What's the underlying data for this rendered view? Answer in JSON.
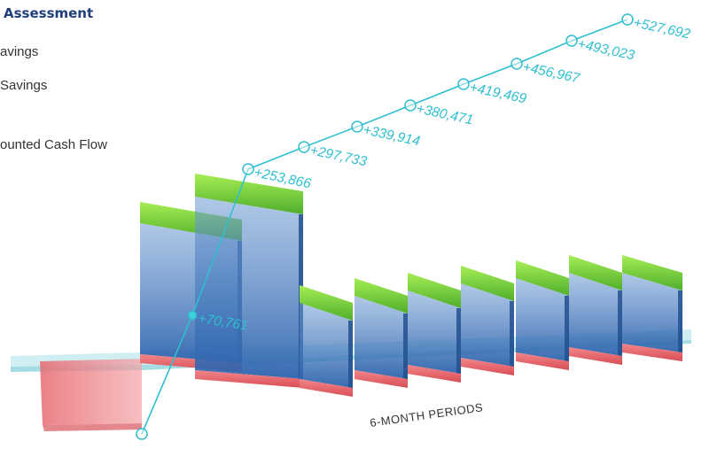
{
  "title": "Assessment",
  "legend": [
    "avings",
    " Savings",
    "ounted Cash Flow"
  ],
  "colors": {
    "title": "#1f3f7a",
    "cumulative_line": "#2fbfcf",
    "gross_savings": "#7ad63a",
    "net_savings": "#3d78c0",
    "cost": "#e8686c",
    "baseline": "#9fdde3"
  },
  "chart_data": {
    "type": "area",
    "xlabel": "6-MONTH PERIODS",
    "series": [
      {
        "values": [
          -210000,
          70761,
          253866,
          297733,
          339914,
          380471,
          419469,
          456967,
          493023,
          527692
        ]
      }
    ],
    "labels": [
      "",
      "+70,761",
      "+253,866",
      "+297,733",
      "+339,914",
      "+380,471",
      "+419,469",
      "+456,967",
      "+493,023",
      "+527,692"
    ]
  }
}
